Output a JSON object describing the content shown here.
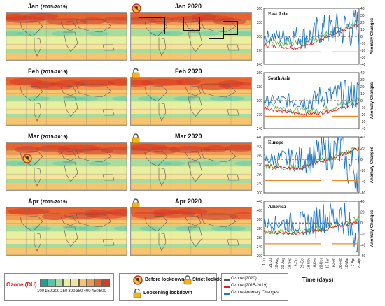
{
  "maps": {
    "rows": [
      {
        "left_title": "Jan",
        "left_years": "(2015-2019)",
        "right_title": "Jan 2020",
        "right_icon": "before-lockdown-icon"
      },
      {
        "left_title": "Feb",
        "left_years": "(2015-2019)",
        "right_title": "Feb 2020",
        "right_icon": "loosening-lockdown-icon"
      },
      {
        "left_title": "Mar",
        "left_years": "(2015-2019)",
        "right_title": "Mar 2020",
        "right_icon": "strict-lockdown-icon"
      },
      {
        "left_title": "Apr",
        "left_years": "(2015-2019)",
        "right_title": "Apr 2020",
        "right_icon": "strict-lockdown-icon"
      }
    ],
    "region_boxes": 4
  },
  "colorbar": {
    "label": "Ozone (DU)",
    "ticks": [
      "100",
      "150",
      "200",
      "250",
      "300",
      "350",
      "400",
      "450",
      "500"
    ],
    "colors": [
      "#2b9b8e",
      "#5ec3a8",
      "#a8dc9c",
      "#e8f0a0",
      "#f6e49a",
      "#f7c56e",
      "#f39a52",
      "#e8642f",
      "#d63b24"
    ]
  },
  "legend": {
    "before": "Before lockdown",
    "strict": "Strict lockdown",
    "loosening": "Loosening lockdown",
    "lines": [
      {
        "label": "Ozone  (2020)",
        "color": "#555555"
      },
      {
        "label": "Ozone  (2015-2019)",
        "color": "#e02020"
      },
      {
        "label": "Ozone   Anomaly  Changes",
        "color": "#1f77c4"
      }
    ]
  },
  "chart_data": [
    {
      "type": "line",
      "title": "East Asia",
      "ylim": [
        240,
        360
      ],
      "yticks": [
        240,
        270,
        300,
        330,
        360
      ],
      "y2lim": [
        -40,
        40
      ],
      "y2ticks": [
        -40,
        -30,
        -20,
        -10,
        0,
        10,
        20,
        30,
        40
      ],
      "y2label": "Anomaly Changes",
      "baseline": 300,
      "red_range": [
        260,
        330
      ],
      "green_range": [
        270,
        335
      ],
      "blue_amp": 40,
      "trend": "rise"
    },
    {
      "type": "line",
      "title": "South Asia",
      "ylim": [
        240,
        360
      ],
      "yticks": [
        240,
        270,
        300,
        330,
        360
      ],
      "y2lim": [
        -40,
        40
      ],
      "y2ticks": [
        -40,
        -30,
        -20,
        -10,
        0,
        10,
        20,
        30,
        40
      ],
      "y2label": "Anomaly Changes",
      "baseline": 300,
      "red_range": [
        255,
        285
      ],
      "green_range": [
        258,
        295
      ],
      "blue_amp": 30,
      "trend": "dip"
    },
    {
      "type": "line",
      "title": "Europe",
      "ylim": [
        200,
        440
      ],
      "yticks": [
        200,
        240,
        280,
        320,
        360,
        400,
        440
      ],
      "y2lim": [
        -60,
        40
      ],
      "y2ticks": [
        -60,
        -40,
        -20,
        0,
        20,
        40
      ],
      "y2label": "Anomaly Changes",
      "baseline": 320,
      "red_range": [
        280,
        400
      ],
      "green_range": [
        280,
        400
      ],
      "blue_amp": 55,
      "trend": "rise"
    },
    {
      "type": "line",
      "title": "America",
      "ylim": [
        200,
        440
      ],
      "yticks": [
        200,
        220,
        240,
        260,
        280,
        300,
        320,
        340,
        360,
        380,
        400,
        420,
        440
      ],
      "y2lim": [
        -60,
        40
      ],
      "y2ticks": [
        -60,
        -40,
        -20,
        0,
        20,
        40
      ],
      "y2label": "Anomaly Changes",
      "baseline": 310,
      "red_range": [
        285,
        360
      ],
      "green_range": [
        285,
        370
      ],
      "blue_amp": 50,
      "trend": "rise"
    }
  ],
  "xaxis": {
    "ticks": [
      "1-Jul",
      "21-Jul",
      "10-Aug",
      "30-Aug",
      "19-Sep",
      "9-Oct",
      "29-Oct",
      "18-Nov",
      "8-Dec",
      "28-Dec",
      "17-Jan",
      "6-Feb",
      "26-Feb",
      "18-Mar",
      "7-Apr",
      "27-Apr"
    ],
    "label": "Time (days)"
  }
}
